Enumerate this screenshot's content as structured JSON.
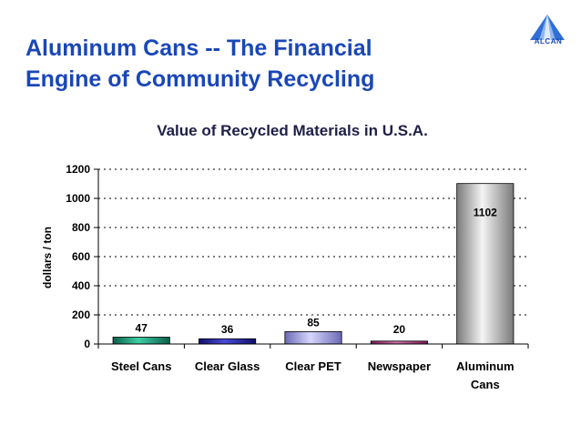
{
  "slide": {
    "title_line1": "Aluminum Cans -- The Financial",
    "title_line2": "Engine of Community Recycling",
    "logo_text": "ALCAN",
    "title_color": "#1a47b8"
  },
  "chart_data": {
    "type": "bar",
    "title": "Value of Recycled Materials in U.S.A.",
    "xlabel": "",
    "ylabel": "dollars / ton",
    "ylim": [
      0,
      1200
    ],
    "yticks": [
      0,
      200,
      400,
      600,
      800,
      1000,
      1200
    ],
    "grid": "horizontal-dotted",
    "categories": [
      {
        "lines": [
          "Steel Cans"
        ]
      },
      {
        "lines": [
          "Clear Glass"
        ]
      },
      {
        "lines": [
          "Clear PET"
        ]
      },
      {
        "lines": [
          "Newspaper"
        ]
      },
      {
        "lines": [
          "Aluminum",
          "Cans"
        ]
      }
    ],
    "values": [
      47,
      36,
      85,
      20,
      1102
    ],
    "data_labels": [
      "47",
      "36",
      "85",
      "20",
      "1102"
    ],
    "colors": [
      {
        "dark": "#0b5f4a",
        "light": "#3ecfa3"
      },
      {
        "dark": "#10106a",
        "light": "#4a4ad8"
      },
      {
        "dark": "#6a6ab5",
        "light": "#d6d6ff"
      },
      {
        "dark": "#7a1a55",
        "light": "#d070a8"
      },
      {
        "dark": "#7a7a7a",
        "light": "#f4f4f4"
      }
    ]
  }
}
